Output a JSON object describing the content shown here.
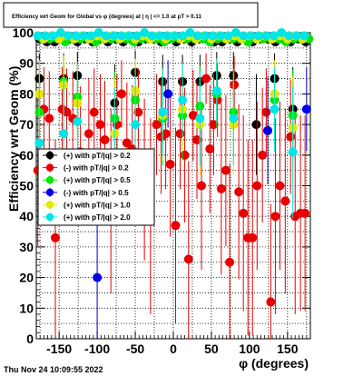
{
  "chart_data": {
    "type": "scatter",
    "title": "Efficiency wrt Geom for Global vs φ (degrees) at | η | <= 1.0 at pT > 0.11",
    "xlabel": "φ (degrees)",
    "ylabel": "Efficiency wrt Geom (%)",
    "xlim": [
      -180,
      180
    ],
    "ylim": [
      0,
      100
    ],
    "xticks": [
      "-150",
      "-100",
      "-50",
      "0",
      "50",
      "100",
      "150"
    ],
    "yticks": [
      "0",
      "10",
      "20",
      "30",
      "40",
      "50",
      "60",
      "70",
      "80",
      "90",
      "100"
    ],
    "grid": true,
    "legend_position": "middle-left",
    "timestamp": "Thu Nov 24 10:09:55 2022",
    "series": [
      {
        "name": "(+) with pT/|q| > 0.2",
        "color": "#000000",
        "x": [
          -176,
          -144,
          -126,
          -77,
          -50,
          -14,
          12,
          35,
          57,
          79,
          109,
          133,
          157
        ],
        "y": [
          85,
          85,
          86,
          77,
          87,
          84,
          84,
          84,
          86,
          86,
          70,
          85,
          75
        ]
      },
      {
        "name": "(-) with pT/|q| > 0.2",
        "color": "#e60000",
        "x": [
          -178,
          -170,
          -163,
          -155,
          -146,
          -140,
          -132,
          -122,
          -111,
          -104,
          -96,
          -90,
          -82,
          -74,
          -68,
          -61,
          -54,
          -46,
          -38,
          -30,
          -22,
          -16,
          -10,
          -4,
          3,
          9,
          15,
          20,
          26,
          31,
          37,
          43,
          48,
          53,
          58,
          63,
          69,
          74,
          80,
          86,
          92,
          98,
          104,
          110,
          117,
          122,
          128,
          134,
          140,
          147,
          154,
          160,
          167,
          173
        ],
        "y": [
          55,
          75,
          72,
          33,
          75,
          74,
          72,
          61,
          67,
          74,
          70,
          65,
          45,
          70,
          80,
          64,
          62,
          74,
          52,
          40,
          70,
          66,
          67,
          57,
          37,
          67,
          60,
          26,
          73,
          65,
          50,
          85,
          62,
          70,
          78,
          49,
          55,
          25,
          83,
          48,
          41,
          33,
          33,
          50,
          60,
          74,
          12,
          40,
          50,
          45,
          66,
          40,
          41,
          41
        ]
      },
      {
        "name": "(+) with pT/|q| > 0.5",
        "color": "#00e600",
        "x": [
          -176,
          -144,
          -126,
          -77,
          -50,
          -14,
          12,
          35,
          57,
          79,
          133,
          157
        ],
        "y": [
          74,
          84,
          79,
          72,
          78,
          72,
          73,
          76,
          80,
          74,
          78,
          73
        ]
      },
      {
        "name": "(-) with pT/|q| > 0.5",
        "color": "#0000e6",
        "x": [
          -100,
          -7,
          124,
          175
        ],
        "y": [
          20,
          80,
          68,
          75
        ]
      },
      {
        "name": "(+) with pT/|q| > 1.0",
        "color": "#e6e600",
        "x": [
          -176,
          -144,
          -126,
          -77,
          -50,
          -14,
          12,
          35,
          57,
          79,
          133,
          157
        ],
        "y": [
          80,
          83,
          77,
          67,
          81,
          73,
          75,
          70,
          81,
          70,
          80,
          69
        ]
      },
      {
        "name": "(+) with pT/|q| > 2.0",
        "color": "#00e6e6",
        "x": [
          -176,
          -144,
          -126,
          -77,
          -50,
          -14,
          12,
          35,
          57,
          79,
          133,
          157
        ],
        "y": [
          64,
          67,
          71,
          60,
          70,
          74,
          78,
          72,
          81,
          72,
          75,
          61
        ]
      },
      {
        "name": "",
        "color": "#000000",
        "x": [
          -176,
          -166,
          -156,
          -146,
          -136,
          -126,
          -116,
          -106,
          -96,
          -86,
          -76,
          -66,
          -56,
          -46,
          -36,
          -26,
          -16,
          -6,
          4,
          14,
          24,
          34,
          44,
          54,
          64,
          74,
          84,
          94,
          104,
          114,
          124,
          134,
          144,
          154,
          164,
          174
        ],
        "y": [
          98,
          97,
          97,
          98,
          98,
          97,
          98,
          97,
          98,
          97,
          98,
          97,
          98,
          97,
          98,
          98,
          97,
          98,
          97,
          98,
          97,
          98,
          98,
          97,
          97,
          98,
          97,
          98,
          97,
          98,
          98,
          97,
          98,
          97,
          98,
          97
        ]
      },
      {
        "name": "",
        "color": "#00e600",
        "x": [
          -172,
          -162,
          -152,
          -142,
          -132,
          -122,
          -112,
          -102,
          -92,
          -82,
          -72,
          -62,
          -52,
          -42,
          -32,
          -22,
          -12,
          -2,
          8,
          18,
          28,
          38,
          48,
          58,
          68,
          78,
          88,
          98,
          108,
          118,
          128,
          138,
          148,
          158,
          168,
          178
        ],
        "y": [
          98,
          98,
          98,
          97,
          98,
          98,
          98,
          97,
          98,
          98,
          98,
          98,
          97,
          98,
          98,
          98,
          97,
          98,
          98,
          98,
          98,
          98,
          97,
          98,
          98,
          98,
          98,
          97,
          98,
          98,
          98,
          98,
          97,
          98,
          98,
          98
        ]
      },
      {
        "name": "",
        "color": "#e6e600",
        "x": [
          -170,
          -160,
          -150,
          -140,
          -130,
          -120,
          -110,
          -100,
          -90,
          -80,
          -70,
          -60,
          -50,
          -40,
          -30,
          -20,
          -10,
          0,
          10,
          20,
          30,
          40,
          50,
          60,
          70,
          80,
          90,
          100,
          110,
          120,
          130,
          140,
          150,
          160,
          170
        ],
        "y": [
          98,
          99,
          98,
          99,
          98,
          99,
          98,
          99,
          98,
          99,
          98,
          99,
          98,
          99,
          98,
          99,
          98,
          99,
          98,
          99,
          98,
          99,
          98,
          99,
          98,
          99,
          98,
          99,
          98,
          99,
          98,
          99,
          98,
          99,
          98
        ]
      },
      {
        "name": "",
        "color": "#00e6e6",
        "x": [
          -178,
          -168,
          -158,
          -148,
          -138,
          -128,
          -118,
          -108,
          -98,
          -88,
          -78,
          -68,
          -58,
          -48,
          -38,
          -28,
          -18,
          -8,
          2,
          12,
          22,
          32,
          42,
          52,
          62,
          72,
          82,
          92,
          102,
          112,
          122,
          132,
          142,
          152,
          162,
          172
        ],
        "y": [
          99,
          99,
          99,
          100,
          99,
          99,
          99,
          99,
          100,
          99,
          99,
          99,
          99,
          99,
          100,
          99,
          99,
          99,
          99,
          99,
          100,
          99,
          99,
          99,
          99,
          99,
          100,
          99,
          99,
          99,
          99,
          99,
          100,
          99,
          99,
          99
        ]
      }
    ]
  }
}
